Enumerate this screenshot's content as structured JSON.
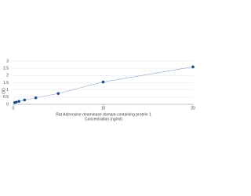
{
  "chart_data": {
    "type": "line",
    "x_label": "Rat Adenosine deaminase domain-containing protein 1",
    "x_label2": "Concentration (ng/ml)",
    "y_label": "OD",
    "x": [
      0.156,
      0.312,
      0.625,
      1.25,
      2.5,
      5,
      10,
      20
    ],
    "series": [
      {
        "color": "#1f4e8c",
        "values": [
          0.12,
          0.15,
          0.2,
          0.3,
          0.45,
          0.75,
          1.55,
          2.6
        ]
      }
    ],
    "xlim": [
      0,
      20
    ],
    "xticks": [
      0,
      10,
      20
    ],
    "ylim": [
      0,
      3
    ],
    "yticks": [
      0,
      0.5,
      1,
      1.5,
      2,
      2.5,
      3
    ],
    "grid": true
  }
}
